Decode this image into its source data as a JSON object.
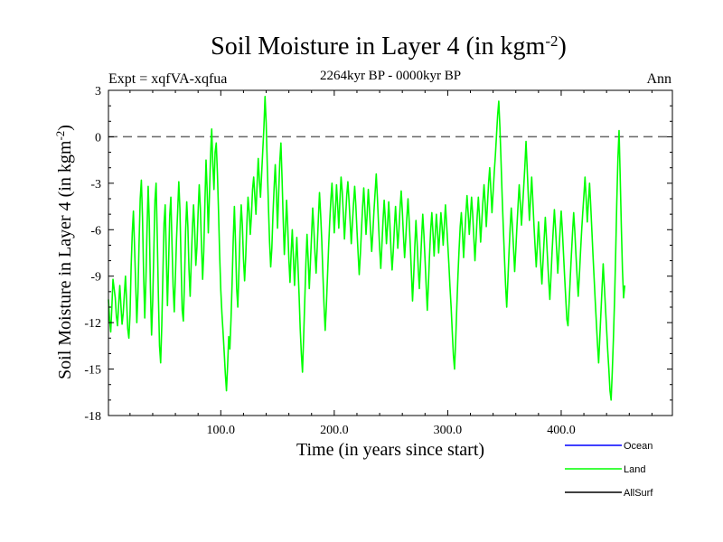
{
  "chart_data": {
    "type": "line",
    "title": "Soil Moisture in Layer 4 (in kgm",
    "title_sup": "-2",
    "title_close": ")",
    "subtitle": "2264kyr BP - 0000kyr BP",
    "expt_label": "Expt = xqfVA-xqfua",
    "season_label": "Ann",
    "xlabel": "Time (in years since start)",
    "ylabel": "Soil Moisture in Layer 4 (in kgm",
    "ylabel_sup": "-2",
    "ylabel_close": ")",
    "xlim": [
      1,
      498
    ],
    "ylim": [
      -18,
      3
    ],
    "x_ticks": [
      100,
      200,
      300,
      400
    ],
    "x_tick_labels": [
      "100.0",
      "200.0",
      "300.0",
      "400.0"
    ],
    "y_ticks": [
      3,
      0,
      -3,
      -6,
      -9,
      -12,
      -15,
      -18
    ],
    "y_tick_labels": [
      "3",
      "0",
      "-3",
      "-6",
      "-9",
      "-12",
      "-15",
      "-18"
    ],
    "zero_line": 0,
    "legend_position": "bottom-right",
    "series": [
      {
        "name": "Ocean",
        "color": "#0000ff",
        "x": [],
        "values": []
      },
      {
        "name": "Land",
        "color": "#00ff00",
        "x_start": 1,
        "x_step": 1,
        "values": [
          -10.5,
          -11.8,
          -12.6,
          -11.0,
          -9.2,
          -9.8,
          -10.4,
          -11.6,
          -12.2,
          -10.8,
          -9.6,
          -10.9,
          -12.1,
          -11.4,
          -10.2,
          -9.0,
          -10.6,
          -12.4,
          -13.0,
          -11.5,
          -8.4,
          -6.2,
          -4.8,
          -7.1,
          -9.5,
          -12.0,
          -10.1,
          -6.8,
          -4.0,
          -2.8,
          -5.2,
          -8.9,
          -11.7,
          -9.3,
          -6.0,
          -3.2,
          -5.5,
          -9.8,
          -12.8,
          -10.6,
          -7.4,
          -4.1,
          -3.0,
          -6.4,
          -10.2,
          -13.5,
          -14.6,
          -12.2,
          -8.8,
          -5.6,
          -4.4,
          -7.8,
          -10.9,
          -8.2,
          -5.1,
          -3.9,
          -6.9,
          -9.7,
          -11.3,
          -9.0,
          -6.6,
          -4.8,
          -2.9,
          -4.7,
          -8.1,
          -11.2,
          -11.9,
          -9.4,
          -6.1,
          -4.2,
          -5.8,
          -8.6,
          -10.3,
          -8.0,
          -5.9,
          -4.4,
          -6.0,
          -8.3,
          -7.1,
          -4.9,
          -3.1,
          -4.6,
          -7.0,
          -9.2,
          -7.4,
          -4.3,
          -1.5,
          -3.5,
          -6.2,
          -3.8,
          -1.2,
          0.5,
          -1.8,
          -3.4,
          -1.0,
          -0.4,
          -2.3,
          -4.8,
          -7.6,
          -9.9,
          -11.4,
          -12.6,
          -13.9,
          -15.3,
          -16.4,
          -14.8,
          -12.9,
          -13.7,
          -11.8,
          -9.4,
          -6.6,
          -4.5,
          -6.9,
          -9.8,
          -11.0,
          -8.6,
          -6.1,
          -4.4,
          -5.7,
          -7.9,
          -9.3,
          -7.7,
          -5.6,
          -3.9,
          -4.8,
          -6.3,
          -5.1,
          -3.4,
          -2.6,
          -3.8,
          -5.0,
          -3.1,
          -1.4,
          -2.8,
          -3.9,
          -2.4,
          -0.9,
          0.6,
          2.6,
          0.9,
          -1.9,
          -4.5,
          -6.8,
          -8.4,
          -7.2,
          -5.0,
          -3.3,
          -1.8,
          -3.6,
          -5.9,
          -3.7,
          -1.6,
          -0.4,
          -2.7,
          -5.3,
          -7.6,
          -6.0,
          -4.1,
          -5.8,
          -7.9,
          -9.4,
          -7.5,
          -6.0,
          -7.8,
          -9.6,
          -8.0,
          -6.5,
          -8.3,
          -10.2,
          -12.4,
          -14.0,
          -15.2,
          -13.0,
          -10.6,
          -8.2,
          -6.3,
          -7.9,
          -9.8,
          -8.1,
          -6.4,
          -4.6,
          -5.9,
          -7.5,
          -8.8,
          -7.1,
          -5.3,
          -3.6,
          -5.0,
          -6.7,
          -8.9,
          -10.9,
          -12.5,
          -11.0,
          -9.1,
          -7.2,
          -5.5,
          -4.1,
          -3.0,
          -4.5,
          -6.2,
          -4.8,
          -3.1,
          -4.4,
          -5.9,
          -4.1,
          -2.6,
          -3.5,
          -5.0,
          -6.6,
          -5.2,
          -3.8,
          -2.9,
          -4.1,
          -5.5,
          -6.9,
          -5.6,
          -4.3,
          -3.2,
          -4.4,
          -6.0,
          -7.5,
          -8.9,
          -7.6,
          -6.0,
          -4.5,
          -3.3,
          -4.7,
          -6.3,
          -5.0,
          -3.4,
          -4.6,
          -6.1,
          -7.4,
          -6.2,
          -4.8,
          -3.6,
          -2.4,
          -3.9,
          -5.6,
          -7.2,
          -8.5,
          -7.0,
          -5.4,
          -4.1,
          -5.3,
          -6.9,
          -5.7,
          -4.2,
          -5.6,
          -7.3,
          -8.6,
          -7.4,
          -5.9,
          -4.5,
          -5.8,
          -7.2,
          -6.0,
          -4.6,
          -3.5,
          -4.8,
          -6.4,
          -7.8,
          -6.6,
          -5.2,
          -4.0,
          -5.4,
          -7.0,
          -8.8,
          -10.6,
          -9.0,
          -7.1,
          -5.4,
          -6.8,
          -8.5,
          -9.8,
          -8.2,
          -6.5,
          -5.0,
          -6.3,
          -7.9,
          -9.6,
          -11.2,
          -9.5,
          -7.6,
          -6.0,
          -4.9,
          -6.2,
          -7.7,
          -6.3,
          -5.0,
          -6.1,
          -7.5,
          -6.2,
          -4.9,
          -5.8,
          -7.0,
          -5.7,
          -4.4,
          -5.6,
          -6.9,
          -8.2,
          -9.7,
          -11.0,
          -12.6,
          -14.1,
          -15.0,
          -13.2,
          -11.0,
          -9.0,
          -7.3,
          -5.8,
          -4.9,
          -6.2,
          -7.8,
          -6.4,
          -5.0,
          -3.8,
          -4.9,
          -6.3,
          -5.1,
          -3.9,
          -5.0,
          -6.5,
          -8.0,
          -6.6,
          -5.1,
          -3.9,
          -5.2,
          -6.8,
          -5.5,
          -4.2,
          -3.1,
          -4.3,
          -5.8,
          -4.4,
          -3.0,
          -2.0,
          -3.4,
          -4.9,
          -3.6,
          -2.3,
          -1.2,
          0.1,
          1.4,
          2.3,
          0.6,
          -1.6,
          -3.9,
          -5.9,
          -7.8,
          -9.6,
          -11.0,
          -9.3,
          -7.5,
          -5.9,
          -4.6,
          -5.8,
          -7.2,
          -8.7,
          -7.3,
          -5.8,
          -4.4,
          -3.1,
          -4.3,
          -5.7,
          -4.5,
          -3.2,
          -1.9,
          -0.3,
          -2.0,
          -3.8,
          -5.4,
          -4.0,
          -2.6,
          -4.1,
          -5.7,
          -7.1,
          -8.4,
          -7.0,
          -5.5,
          -6.8,
          -8.2,
          -9.5,
          -8.0,
          -6.6,
          -5.2,
          -6.5,
          -7.9,
          -9.3,
          -10.5,
          -9.0,
          -7.4,
          -6.0,
          -4.7,
          -5.9,
          -7.3,
          -8.8,
          -7.4,
          -6.1,
          -4.8,
          -6.0,
          -7.5,
          -9.0,
          -10.4,
          -11.8,
          -12.2,
          -10.7,
          -9.1,
          -7.6,
          -6.2,
          -4.9,
          -6.1,
          -7.6,
          -9.0,
          -10.3,
          -9.0,
          -7.5,
          -6.1,
          -4.9,
          -3.8,
          -2.6,
          -4.0,
          -5.5,
          -4.2,
          -3.0,
          -4.4,
          -6.0,
          -7.6,
          -9.1,
          -10.6,
          -12.0,
          -13.4,
          -14.6,
          -13.0,
          -11.4,
          -9.8,
          -8.2,
          -9.6,
          -11.0,
          -12.4,
          -13.8,
          -15.0,
          -16.4,
          -17.0,
          -15.2,
          -13.1,
          -10.6,
          -7.6,
          -4.2,
          -1.4,
          0.4,
          -2.6,
          -5.8,
          -8.6,
          -10.4,
          -9.6
        ]
      },
      {
        "name": "AllSurf",
        "color": "#000000",
        "x": [],
        "values": []
      }
    ]
  }
}
